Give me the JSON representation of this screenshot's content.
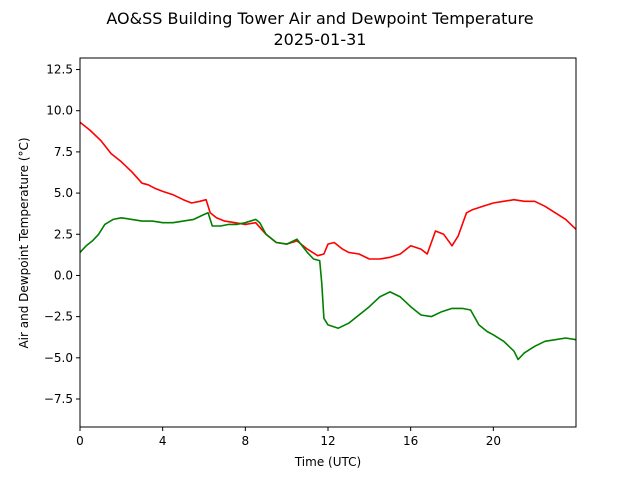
{
  "chart_data": {
    "type": "line",
    "title": "AO&SS Building Tower Air and Dewpoint Temperature",
    "subtitle": "2025-01-31",
    "xlabel": "Time (UTC)",
    "ylabel": "Air and Dewpoint Temperature (°C)",
    "xlim": [
      0,
      24
    ],
    "ylim": [
      -9.2,
      13.2
    ],
    "xticks": [
      0,
      4,
      8,
      12,
      16,
      20
    ],
    "xtick_labels": [
      "0",
      "4",
      "8",
      "12",
      "16",
      "20"
    ],
    "yticks": [
      -7.5,
      -5.0,
      -2.5,
      0.0,
      2.5,
      5.0,
      7.5,
      10.0,
      12.5
    ],
    "ytick_labels": [
      "−7.5",
      "−5.0",
      "−2.5",
      "0.0",
      "2.5",
      "5.0",
      "7.5",
      "10.0",
      "12.5"
    ],
    "grid": false,
    "series": [
      {
        "color": "#ff0000",
        "x": [
          0,
          0.5,
          1,
          1.5,
          2,
          2.5,
          3,
          3.3,
          3.6,
          4,
          4.5,
          5,
          5.4,
          5.8,
          6.1,
          6.3,
          6.6,
          7,
          7.5,
          8,
          8.5,
          9,
          9.5,
          10,
          10.5,
          11,
          11.5,
          11.8,
          12,
          12.3,
          12.7,
          13,
          13.5,
          14,
          14.5,
          15,
          15.5,
          16,
          16.5,
          16.8,
          17.2,
          17.6,
          18,
          18.3,
          18.7,
          19,
          19.5,
          20,
          20.5,
          21,
          21.5,
          22,
          22.5,
          23,
          23.5,
          24
        ],
        "y": [
          9.3,
          8.8,
          8.2,
          7.4,
          6.9,
          6.3,
          5.6,
          5.5,
          5.3,
          5.1,
          4.9,
          4.6,
          4.4,
          4.5,
          4.6,
          3.8,
          3.5,
          3.3,
          3.2,
          3.1,
          3.2,
          2.5,
          2.0,
          1.9,
          2.1,
          1.6,
          1.2,
          1.3,
          1.9,
          2.0,
          1.6,
          1.4,
          1.3,
          1.0,
          1.0,
          1.1,
          1.3,
          1.8,
          1.6,
          1.3,
          2.7,
          2.5,
          1.8,
          2.4,
          3.8,
          4.0,
          4.2,
          4.4,
          4.5,
          4.6,
          4.5,
          4.5,
          4.2,
          3.8,
          3.4,
          2.8
        ]
      },
      {
        "color": "#008000",
        "x": [
          0,
          0.3,
          0.6,
          0.9,
          1.2,
          1.6,
          2,
          2.5,
          3,
          3.5,
          4,
          4.5,
          5,
          5.5,
          6,
          6.2,
          6.4,
          6.8,
          7.2,
          7.6,
          8,
          8.5,
          8.7,
          9,
          9.5,
          10,
          10.5,
          11,
          11.3,
          11.6,
          11.7,
          11.8,
          12,
          12.5,
          13,
          13.5,
          14,
          14.5,
          15,
          15.5,
          16,
          16.5,
          17,
          17.5,
          18,
          18.5,
          18.9,
          19.3,
          19.7,
          20,
          20.5,
          21,
          21.2,
          21.5,
          22,
          22.5,
          23,
          23.5,
          24
        ],
        "y": [
          1.4,
          1.8,
          2.1,
          2.5,
          3.1,
          3.4,
          3.5,
          3.4,
          3.3,
          3.3,
          3.2,
          3.2,
          3.3,
          3.4,
          3.7,
          3.8,
          3.0,
          3.0,
          3.1,
          3.1,
          3.2,
          3.4,
          3.2,
          2.5,
          2.0,
          1.9,
          2.2,
          1.4,
          1.0,
          0.9,
          -0.5,
          -2.6,
          -3.0,
          -3.2,
          -2.9,
          -2.4,
          -1.9,
          -1.3,
          -1.0,
          -1.3,
          -1.9,
          -2.4,
          -2.5,
          -2.2,
          -2.0,
          -2.0,
          -2.1,
          -3.0,
          -3.4,
          -3.6,
          -4.0,
          -4.6,
          -5.1,
          -4.7,
          -4.3,
          -4.0,
          -3.9,
          -3.8,
          -3.9
        ]
      }
    ]
  }
}
